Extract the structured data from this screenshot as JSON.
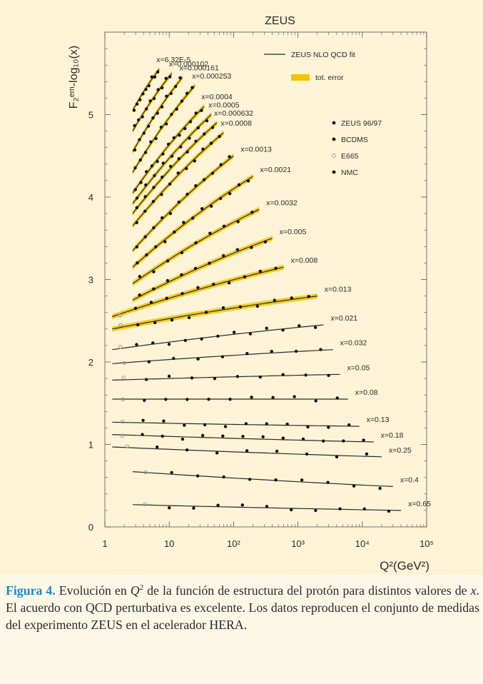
{
  "chart_data": {
    "type": "scatter",
    "title": "ZEUS",
    "xlabel": "Q²(GeV²)",
    "ylabel": "F₂ᵉᵐ-log₁₀(x)",
    "xscale": "log",
    "xlim": [
      1,
      100000
    ],
    "ylim": [
      0,
      6
    ],
    "xticks": [
      {
        "value": 1,
        "label": "1"
      },
      {
        "value": 10,
        "label": "10"
      },
      {
        "value": 100,
        "label": "10²"
      },
      {
        "value": 1000,
        "label": "10³"
      },
      {
        "value": 10000,
        "label": "10⁴"
      },
      {
        "value": 100000,
        "label": "10⁵"
      }
    ],
    "yticks": [
      0,
      1,
      2,
      3,
      4,
      5
    ],
    "grid": false,
    "legend_position": "top-right",
    "legend": [
      {
        "label": "ZEUS NLO QCD fit",
        "kind": "line"
      },
      {
        "label": "tot. error",
        "kind": "band"
      },
      {
        "label": "ZEUS 96/97",
        "kind": "point"
      },
      {
        "label": "BCDMS",
        "kind": "point"
      },
      {
        "label": "E665",
        "kind": "open-point"
      },
      {
        "label": "NMC",
        "kind": "point"
      }
    ],
    "colors": {
      "fit": "#2a2a2a",
      "band": "#f2c400",
      "points": "#111111",
      "open_points": "#9a9a9a",
      "frame": "#555555",
      "text": "#2b2b2b"
    },
    "series": [
      {
        "label": "x=6.32E-5",
        "q2_range": [
          2.7,
          7
        ],
        "y_start": 5.05,
        "y_end": 5.55,
        "band": true
      },
      {
        "label": "x=0.000102",
        "q2_range": [
          2.7,
          11
        ],
        "y_start": 4.8,
        "y_end": 5.5,
        "band": true
      },
      {
        "label": "x=0.000161",
        "q2_range": [
          2.7,
          16
        ],
        "y_start": 4.55,
        "y_end": 5.45,
        "band": true
      },
      {
        "label": "x=0.000253",
        "q2_range": [
          2.7,
          25
        ],
        "y_start": 4.3,
        "y_end": 5.35,
        "band": true
      },
      {
        "label": "x=0.0004",
        "q2_range": [
          2.7,
          35
        ],
        "y_start": 4.05,
        "y_end": 5.1,
        "band": true
      },
      {
        "label": "x=0.0005",
        "q2_range": [
          2.7,
          45
        ],
        "y_start": 3.92,
        "y_end": 5.0,
        "band": true
      },
      {
        "label": "x=0.000632",
        "q2_range": [
          2.7,
          55
        ],
        "y_start": 3.8,
        "y_end": 4.9,
        "band": true
      },
      {
        "label": "x=0.0008",
        "q2_range": [
          2.7,
          70
        ],
        "y_start": 3.65,
        "y_end": 4.78,
        "band": true
      },
      {
        "label": "x=0.0013",
        "q2_range": [
          2.7,
          100
        ],
        "y_start": 3.35,
        "y_end": 4.5,
        "band": true
      },
      {
        "label": "x=0.0021",
        "q2_range": [
          2.7,
          200
        ],
        "y_start": 3.15,
        "y_end": 4.25,
        "band": true
      },
      {
        "label": "x=0.0032",
        "q2_range": [
          2.7,
          250
        ],
        "y_start": 2.95,
        "y_end": 3.85,
        "band": true
      },
      {
        "label": "x=0.005",
        "q2_range": [
          2.7,
          400
        ],
        "y_start": 2.75,
        "y_end": 3.5,
        "band": true
      },
      {
        "label": "x=0.008",
        "q2_range": [
          1.3,
          600
        ],
        "y_start": 2.55,
        "y_end": 3.15,
        "band": true
      },
      {
        "label": "x=0.013",
        "q2_range": [
          1.3,
          2000
        ],
        "y_start": 2.4,
        "y_end": 2.8,
        "band": true
      },
      {
        "label": "x=0.021",
        "q2_range": [
          1.3,
          2500
        ],
        "y_start": 2.15,
        "y_end": 2.45,
        "band": false
      },
      {
        "label": "x=0.032",
        "q2_range": [
          1.3,
          3500
        ],
        "y_start": 1.98,
        "y_end": 2.15,
        "band": false
      },
      {
        "label": "x=0.05",
        "q2_range": [
          1.3,
          4500
        ],
        "y_start": 1.78,
        "y_end": 1.85,
        "band": false
      },
      {
        "label": "x=0.08",
        "q2_range": [
          1.3,
          6000
        ],
        "y_start": 1.55,
        "y_end": 1.55,
        "band": false
      },
      {
        "label": "x=0.13",
        "q2_range": [
          1.3,
          9000
        ],
        "y_start": 1.27,
        "y_end": 1.22,
        "band": false
      },
      {
        "label": "x=0.18",
        "q2_range": [
          1.3,
          15000
        ],
        "y_start": 1.12,
        "y_end": 1.03,
        "band": false
      },
      {
        "label": "x=0.25",
        "q2_range": [
          1.3,
          20000
        ],
        "y_start": 0.97,
        "y_end": 0.85,
        "band": false
      },
      {
        "label": "x=0.4",
        "q2_range": [
          2.7,
          30000
        ],
        "y_start": 0.67,
        "y_end": 0.49,
        "band": false
      },
      {
        "label": "x=0.65",
        "q2_range": [
          2.7,
          40000
        ],
        "y_start": 0.27,
        "y_end": 0.2,
        "band": false
      }
    ]
  },
  "caption": {
    "figure_label": "Figura 4.",
    "part1": " Evolución en ",
    "q_symbol": "Q",
    "q_exponent": "2",
    "part2": " de la función de estructura del protón para distintos valores de ",
    "x_symbol": "x",
    "part3": ". El acuerdo con QCD perturbativa es excelente. Los datos reproducen el conjunto de medidas del experimento ZEUS en el acelerador HERA."
  }
}
